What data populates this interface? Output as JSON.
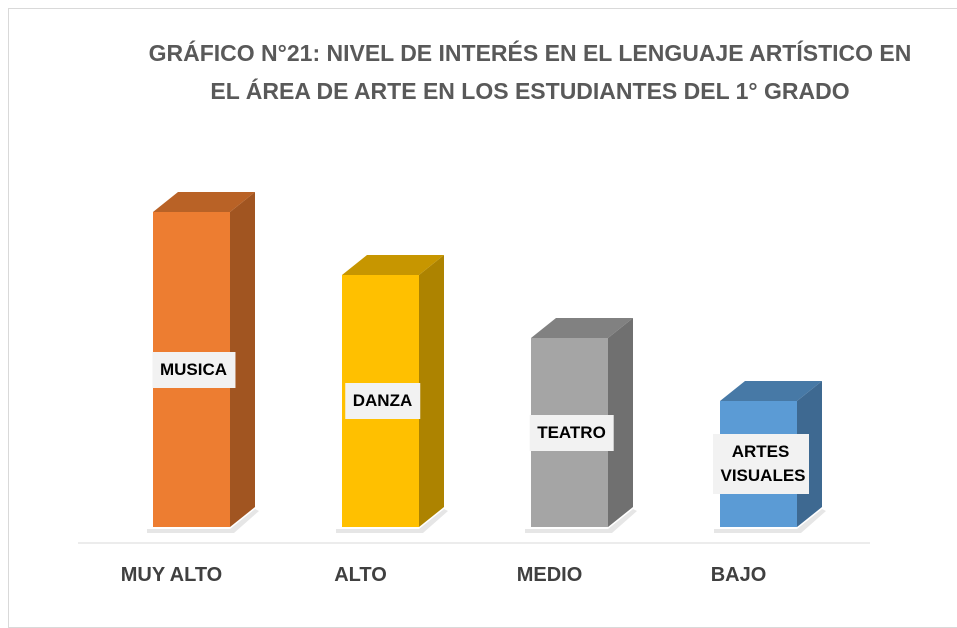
{
  "chart_data": {
    "type": "bar3d",
    "title": "GRÁFICO N°21: NIVEL DE INTERÉS EN EL LENGUAJE ARTÍSTICO EN EL ÁREA DE ARTE EN LOS ESTUDIANTES DEL 1° GRADO",
    "categories": [
      "MUY ALTO",
      "ALTO",
      "MEDIO",
      "BAJO"
    ],
    "values": [
      5,
      4,
      3,
      2
    ],
    "bar_labels": [
      "MUSICA",
      "DANZA",
      "TEATRO",
      "ARTES VISUALES"
    ],
    "colors": [
      "#ed7d31",
      "#ffc000",
      "#a5a5a5",
      "#5b9bd5"
    ]
  }
}
